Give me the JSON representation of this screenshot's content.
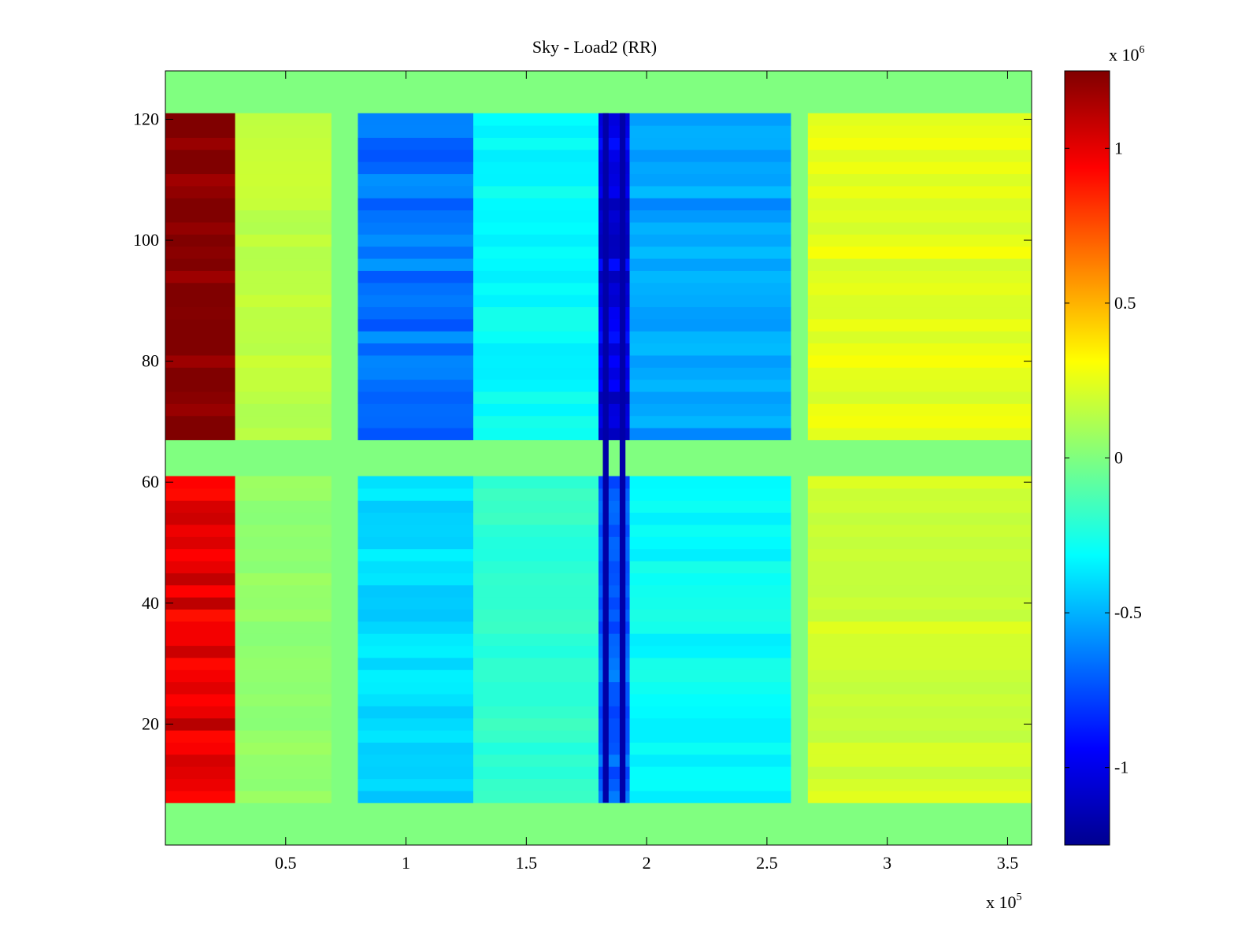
{
  "chart_data": {
    "type": "heatmap",
    "title": "Sky - Load2 (RR)",
    "xlabel": "",
    "ylabel": "",
    "x_range": [
      0,
      3.6
    ],
    "x_exponent_label": {
      "base": "x 10",
      "exp": "5"
    },
    "y_range": [
      0,
      128
    ],
    "x_ticks": [
      0.5,
      1,
      1.5,
      2,
      2.5,
      3,
      3.5
    ],
    "x_tick_labels": [
      "0.5",
      "1",
      "1.5",
      "2",
      "2.5",
      "3",
      "3.5"
    ],
    "y_ticks": [
      20,
      40,
      60,
      80,
      100,
      120
    ],
    "y_tick_labels": [
      "20",
      "40",
      "60",
      "80",
      "100",
      "120"
    ],
    "colorbar": {
      "colormap": "jet",
      "range": [
        -1.25,
        1.25
      ],
      "exponent_label": {
        "base": "x 10",
        "exp": "6"
      },
      "ticks": [
        -1,
        -0.5,
        0,
        0.5,
        1
      ],
      "tick_labels": [
        "-1",
        "-0.5",
        "0",
        "0.5",
        "1"
      ]
    },
    "value_bands": [
      {
        "y": [
          121,
          128
        ],
        "x": [
          0,
          3.6
        ],
        "value": 0,
        "label": "empty top rows"
      },
      {
        "y": [
          0,
          7
        ],
        "x": [
          0,
          3.6
        ],
        "value": 0,
        "label": "empty bottom rows"
      },
      {
        "y": [
          61,
          67
        ],
        "x": [
          0,
          3.6
        ],
        "value": 0,
        "label": "empty middle rows"
      },
      {
        "y": [
          67,
          121
        ],
        "x": [
          0,
          0.29
        ],
        "value": 1.3,
        "label": "upper left block"
      },
      {
        "y": [
          7,
          61
        ],
        "x": [
          0,
          0.29
        ],
        "value": 1.0,
        "label": "lower left block"
      },
      {
        "y": [
          67,
          121
        ],
        "x": [
          0.29,
          0.69
        ],
        "value": 0.15
      },
      {
        "y": [
          67,
          121
        ],
        "x": [
          0.8,
          1.28
        ],
        "value": -0.65
      },
      {
        "y": [
          67,
          121
        ],
        "x": [
          1.28,
          1.8
        ],
        "value": -0.3
      },
      {
        "y": [
          67,
          121
        ],
        "x": [
          1.8,
          1.93
        ],
        "value": -1.0
      },
      {
        "y": [
          67,
          121
        ],
        "x": [
          1.93,
          2.6
        ],
        "value": -0.55
      },
      {
        "y": [
          67,
          121
        ],
        "x": [
          2.67,
          3.6
        ],
        "value": 0.25
      },
      {
        "y": [
          7,
          61
        ],
        "x": [
          0.29,
          0.69
        ],
        "value": 0.05
      },
      {
        "y": [
          7,
          61
        ],
        "x": [
          0.8,
          1.28
        ],
        "value": -0.4
      },
      {
        "y": [
          7,
          61
        ],
        "x": [
          1.28,
          1.8
        ],
        "value": -0.2
      },
      {
        "y": [
          7,
          61
        ],
        "x": [
          1.8,
          1.93
        ],
        "value": -0.7
      },
      {
        "y": [
          7,
          61
        ],
        "x": [
          1.93,
          2.6
        ],
        "value": -0.3
      },
      {
        "y": [
          7,
          61
        ],
        "x": [
          2.67,
          3.6
        ],
        "value": 0.2
      }
    ]
  }
}
